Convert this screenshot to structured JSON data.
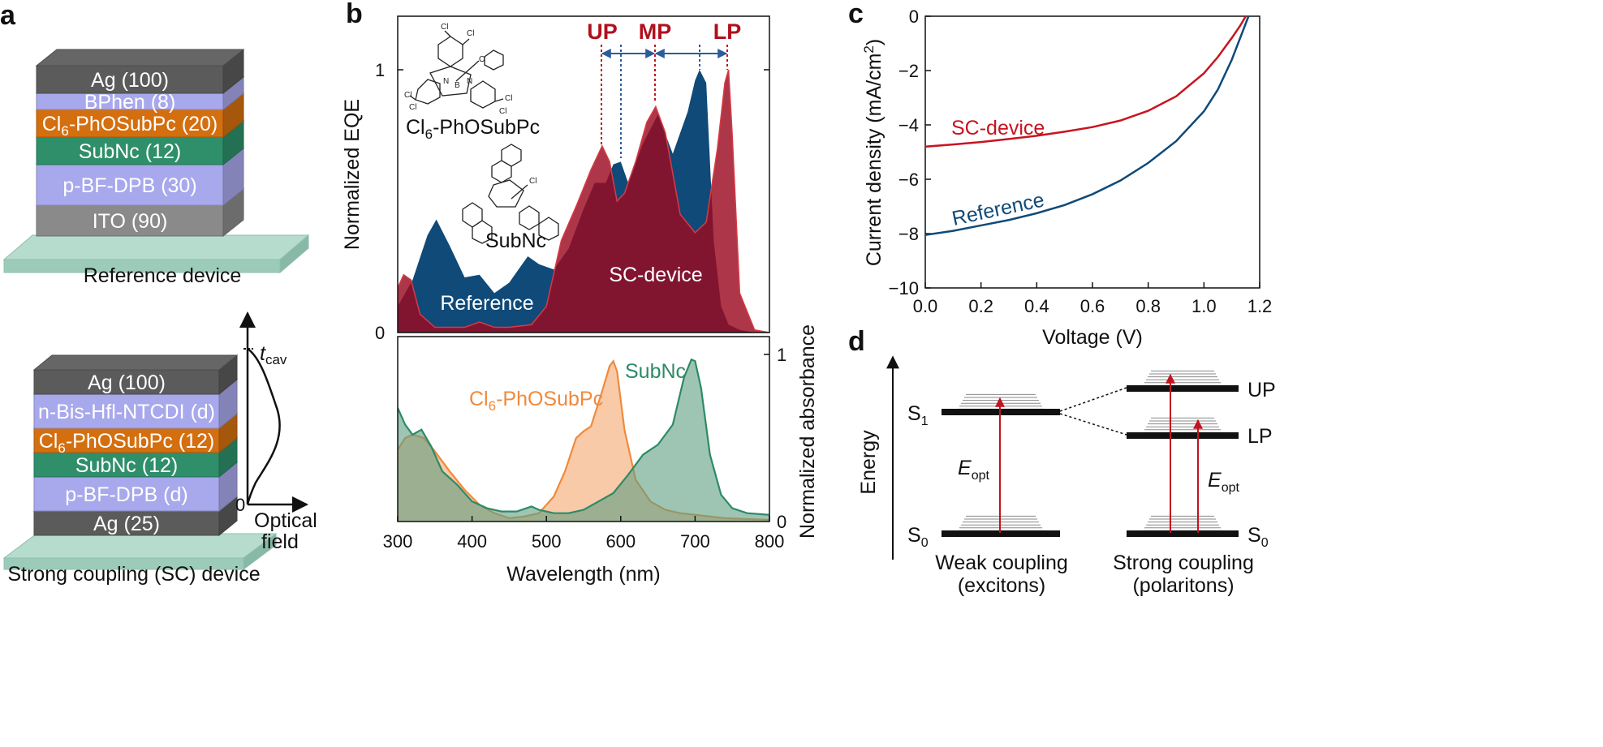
{
  "panels": {
    "a": {
      "label": "a",
      "reference": {
        "title": "Reference device",
        "layers": [
          {
            "name": "Ag (100)",
            "color": "#5b5b5b"
          },
          {
            "name": "BPhen (8)",
            "color": "#a8a8ec"
          },
          {
            "name": "Cl6-PhOSubPc (20)",
            "color": "#d46f10"
          },
          {
            "name": "SubNc (12)",
            "color": "#2e8f6a"
          },
          {
            "name": "p-BF-DPB (30)",
            "color": "#a8a8ec"
          },
          {
            "name": "ITO (90)",
            "color": "#8a8a8a"
          }
        ]
      },
      "sc": {
        "title": "Strong coupling (SC) device",
        "layers": [
          {
            "name": "Ag (100)",
            "color": "#5b5b5b"
          },
          {
            "name": "n-Bis-Hfl-NTCDI (d)",
            "color": "#a8a8ec"
          },
          {
            "name": "Cl6-PhOSubPc (12)",
            "color": "#d46f10"
          },
          {
            "name": "SubNc (12)",
            "color": "#2e8f6a"
          },
          {
            "name": "p-BF-DPB (d)",
            "color": "#a8a8ec"
          },
          {
            "name": "Ag (25)",
            "color": "#5b5b5b"
          }
        ],
        "field_axis": {
          "top_label": "t",
          "top_label_sub": "cav",
          "zero": "0",
          "x_label_line1": "Optical",
          "x_label_line2": "field"
        }
      }
    },
    "b": {
      "label": "b",
      "top": {
        "ylabel": "Normalized EQE",
        "yticks": [
          "0",
          "1"
        ],
        "mode_labels": [
          "UP",
          "MP",
          "LP"
        ],
        "curve_labels": {
          "reference": "Reference",
          "sc": "SC-device"
        },
        "molecules": {
          "m1": "Cl",
          "m1_sub": "6",
          "m1_rest": "-PhOSubPc",
          "m2": "SubNc"
        }
      },
      "bottom": {
        "ylabel": "Normalized absorbance",
        "yticks": [
          "0",
          "1"
        ],
        "xlabel": "Wavelength (nm)",
        "xticks": [
          "300",
          "400",
          "500",
          "600",
          "700",
          "800"
        ],
        "curve_labels": {
          "subpc": "Cl",
          "subpc_sub": "6",
          "subpc_rest": "-PhOSubPc",
          "subnc": "SubNc"
        }
      },
      "chart_data": [
        {
          "type": "area",
          "title": "Normalized EQE",
          "xlabel": "Wavelength (nm)",
          "ylabel": "Normalized EQE",
          "xlim": [
            300,
            800
          ],
          "ylim": [
            0,
            1.2
          ],
          "series": [
            {
              "name": "Reference",
              "color": "#0f4a78",
              "x": [
                300,
                320,
                340,
                352,
                370,
                390,
                410,
                430,
                450,
                475,
                490,
                510,
                530,
                550,
                565,
                580,
                590,
                600,
                610,
                630,
                650,
                670,
                690,
                700,
                706,
                715,
                725,
                735,
                745,
                760,
                780,
                800
              ],
              "y": [
                0.1,
                0.2,
                0.37,
                0.43,
                0.33,
                0.21,
                0.22,
                0.15,
                0.19,
                0.29,
                0.26,
                0.24,
                0.32,
                0.47,
                0.57,
                0.57,
                0.64,
                0.65,
                0.57,
                0.72,
                0.83,
                0.68,
                0.84,
                0.96,
                1.0,
                0.95,
                0.35,
                0.1,
                0.03,
                0.01,
                0.0,
                0.0
              ]
            },
            {
              "name": "SC-device",
              "color": "#9b0a20",
              "x": [
                300,
                308,
                318,
                330,
                350,
                370,
                390,
                410,
                430,
                450,
                480,
                500,
                520,
                540,
                560,
                575,
                585,
                595,
                605,
                620,
                635,
                647,
                660,
                680,
                700,
                715,
                730,
                740,
                745,
                750,
                760,
                780,
                800
              ],
              "y": [
                0.17,
                0.22,
                0.2,
                0.07,
                0.02,
                0.02,
                0.02,
                0.04,
                0.02,
                0.02,
                0.03,
                0.1,
                0.35,
                0.48,
                0.62,
                0.71,
                0.65,
                0.5,
                0.53,
                0.65,
                0.8,
                0.86,
                0.76,
                0.45,
                0.38,
                0.42,
                0.7,
                0.95,
                1.0,
                0.75,
                0.15,
                0.01,
                0.0
              ]
            }
          ],
          "annotations": [
            "UP",
            "MP",
            "LP"
          ]
        },
        {
          "type": "area",
          "title": "Normalized absorbance",
          "xlabel": "Wavelength (nm)",
          "ylabel": "Normalized absorbance",
          "xlim": [
            300,
            800
          ],
          "ylim": [
            0,
            1.05
          ],
          "series": [
            {
              "name": "Cl6-PhOSubPc",
              "color": "#f08a3c",
              "x": [
                300,
                310,
                320,
                335,
                350,
                370,
                390,
                410,
                430,
                450,
                470,
                490,
                510,
                525,
                540,
                550,
                560,
                575,
                585,
                590,
                595,
                605,
                620,
                640,
                660,
                680,
                700,
                740,
                800
              ],
              "y": [
                0.43,
                0.5,
                0.52,
                0.5,
                0.42,
                0.3,
                0.19,
                0.1,
                0.05,
                0.02,
                0.03,
                0.05,
                0.15,
                0.3,
                0.5,
                0.54,
                0.57,
                0.78,
                0.93,
                0.96,
                0.9,
                0.55,
                0.25,
                0.12,
                0.07,
                0.05,
                0.04,
                0.02,
                0.01
              ]
            },
            {
              "name": "SubNc",
              "color": "#2e8a66",
              "x": [
                300,
                310,
                320,
                332,
                345,
                360,
                380,
                400,
                420,
                440,
                460,
                480,
                490,
                510,
                530,
                550,
                570,
                590,
                610,
                630,
                650,
                670,
                685,
                695,
                700,
                708,
                720,
                735,
                750,
                770,
                800
              ],
              "y": [
                0.68,
                0.58,
                0.52,
                0.55,
                0.45,
                0.3,
                0.22,
                0.12,
                0.08,
                0.06,
                0.06,
                0.09,
                0.07,
                0.05,
                0.05,
                0.07,
                0.12,
                0.17,
                0.28,
                0.4,
                0.46,
                0.58,
                0.86,
                0.97,
                0.96,
                0.8,
                0.4,
                0.16,
                0.08,
                0.05,
                0.04
              ]
            }
          ]
        }
      ]
    },
    "c": {
      "label": "c",
      "xlabel": "Voltage (V)",
      "ylabel": "Current density (mA/cm",
      "ylabel_sup": "2",
      "ylabel_end": ")",
      "xticks": [
        "0.0",
        "0.2",
        "0.4",
        "0.6",
        "0.8",
        "1.0",
        "1.2"
      ],
      "yticks": [
        "0",
        "−2",
        "−4",
        "−6",
        "−8",
        "−10"
      ],
      "curve_labels": {
        "sc": "SC-device",
        "reference": "Reference"
      },
      "chart_data": {
        "type": "line",
        "xlabel": "Voltage (V)",
        "ylabel": "Current density (mA/cm2)",
        "xlim": [
          0.0,
          1.2
        ],
        "ylim": [
          -10,
          0
        ],
        "series": [
          {
            "name": "SC-device",
            "color": "#c8141f",
            "x": [
              0.0,
              0.1,
              0.2,
              0.3,
              0.4,
              0.5,
              0.6,
              0.7,
              0.8,
              0.9,
              1.0,
              1.05,
              1.1,
              1.13,
              1.15
            ],
            "y": [
              -4.8,
              -4.72,
              -4.63,
              -4.52,
              -4.4,
              -4.25,
              -4.08,
              -3.84,
              -3.48,
              -2.95,
              -2.1,
              -1.5,
              -0.8,
              -0.35,
              0.0
            ]
          },
          {
            "name": "Reference",
            "color": "#0f4a78",
            "x": [
              0.0,
              0.1,
              0.2,
              0.3,
              0.4,
              0.5,
              0.6,
              0.7,
              0.8,
              0.9,
              1.0,
              1.05,
              1.1,
              1.13,
              1.16
            ],
            "y": [
              -8.05,
              -7.9,
              -7.7,
              -7.5,
              -7.25,
              -6.95,
              -6.55,
              -6.05,
              -5.4,
              -4.6,
              -3.5,
              -2.7,
              -1.6,
              -0.8,
              0.0
            ]
          }
        ]
      }
    },
    "d": {
      "label": "d",
      "energy_label": "Energy",
      "s1": "S",
      "s1_sub": "1",
      "s0": "S",
      "s0_sub": "0",
      "s0_right": "S",
      "s0_right_sub": "0",
      "up": "UP",
      "lp": "LP",
      "eopt_left": "E",
      "eopt_left_sub": "opt",
      "eopt_right": "E",
      "eopt_right_sub": "opt",
      "weak_line1": "Weak coupling",
      "weak_line2": "(excitons)",
      "strong_line1": "Strong coupling",
      "strong_line2": "(polaritons)"
    }
  }
}
